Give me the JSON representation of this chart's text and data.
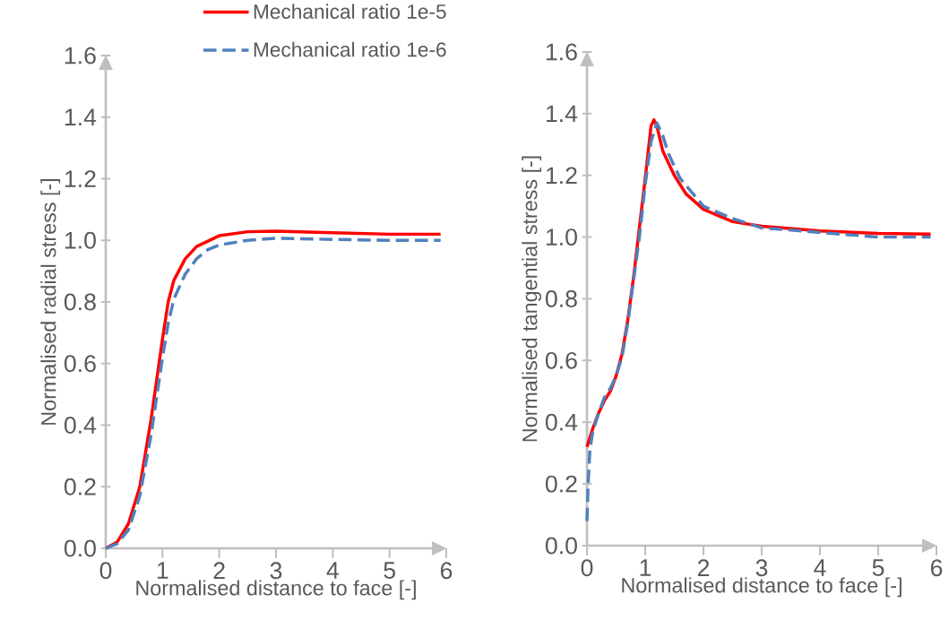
{
  "chart_data": [
    {
      "type": "line",
      "xlabel": "Normalised distance to face [-]",
      "ylabel": "Normalised radial stress [-]",
      "xlim": [
        0,
        6
      ],
      "ylim": [
        0,
        1.6
      ],
      "xticks": [
        0,
        1,
        2,
        3,
        4,
        5,
        6
      ],
      "yticks": [
        {
          "value": 0,
          "label": "0.0"
        },
        {
          "value": 0.2,
          "label": "0.2"
        },
        {
          "value": 0.4,
          "label": "0.4"
        },
        {
          "value": 0.6,
          "label": "0.6"
        },
        {
          "value": 0.8,
          "label": "0.8"
        },
        {
          "value": 1.0,
          "label": "1.0"
        },
        {
          "value": 1.2,
          "label": "1.2"
        },
        {
          "value": 1.4,
          "label": "1.4"
        },
        {
          "value": 1.6,
          "label": "1.6"
        }
      ],
      "grid": false,
      "legend": "top right",
      "marker": "none",
      "series": [
        {
          "name": "Mechanical ratio 1e-5",
          "color": "#ff0000",
          "line_style": "solid",
          "x": [
            0,
            0.2,
            0.4,
            0.6,
            0.8,
            1.0,
            1.1,
            1.2,
            1.4,
            1.6,
            2.0,
            2.5,
            3,
            4,
            5,
            5.9
          ],
          "values": [
            0,
            0.02,
            0.08,
            0.2,
            0.42,
            0.68,
            0.8,
            0.87,
            0.94,
            0.98,
            1.015,
            1.028,
            1.03,
            1.025,
            1.02,
            1.02
          ]
        },
        {
          "name": "Mechanical ratio 1e-6",
          "color": "#4f81bd",
          "line_style": "dashed",
          "x": [
            0,
            0.2,
            0.4,
            0.6,
            0.8,
            1.0,
            1.1,
            1.2,
            1.4,
            1.6,
            1.8,
            2.0,
            2.5,
            3,
            4,
            5,
            5.9
          ],
          "values": [
            0,
            0.015,
            0.06,
            0.17,
            0.37,
            0.62,
            0.73,
            0.81,
            0.89,
            0.94,
            0.97,
            0.985,
            1.0,
            1.007,
            1.003,
            1.0,
            1.0
          ]
        }
      ]
    },
    {
      "type": "line",
      "xlabel": "Normalised distance to face [-]",
      "ylabel": "Normalised tangential stress [-]",
      "xlim": [
        0,
        6
      ],
      "ylim": [
        0,
        1.6
      ],
      "xticks": [
        0,
        1,
        2,
        3,
        4,
        5,
        6
      ],
      "yticks": [
        {
          "value": 0,
          "label": "0.0"
        },
        {
          "value": 0.2,
          "label": "0.2"
        },
        {
          "value": 0.4,
          "label": "0.4"
        },
        {
          "value": 0.6,
          "label": "0.6"
        },
        {
          "value": 0.8,
          "label": "0.8"
        },
        {
          "value": 1.0,
          "label": "1.0"
        },
        {
          "value": 1.2,
          "label": "1.2"
        },
        {
          "value": 1.4,
          "label": "1.4"
        },
        {
          "value": 1.6,
          "label": "1.6"
        }
      ],
      "grid": false,
      "legend": false,
      "marker": "none",
      "series": [
        {
          "color": "#ff0000",
          "line_style": "solid",
          "x": [
            0,
            0.1,
            0.2,
            0.3,
            0.4,
            0.5,
            0.6,
            0.7,
            0.8,
            0.9,
            1.0,
            1.1,
            1.15,
            1.2,
            1.3,
            1.5,
            1.7,
            2,
            2.5,
            3,
            4,
            5,
            5.9
          ],
          "values": [
            0.32,
            0.38,
            0.43,
            0.47,
            0.5,
            0.55,
            0.62,
            0.73,
            0.87,
            1.03,
            1.19,
            1.36,
            1.38,
            1.36,
            1.28,
            1.2,
            1.14,
            1.09,
            1.05,
            1.035,
            1.02,
            1.012,
            1.01
          ]
        },
        {
          "color": "#4f81bd",
          "line_style": "dashed",
          "x": [
            0,
            0.02,
            0.05,
            0.1,
            0.2,
            0.3,
            0.4,
            0.5,
            0.6,
            0.7,
            0.8,
            0.9,
            1.0,
            1.1,
            1.2,
            1.3,
            1.4,
            1.6,
            2,
            2.5,
            3,
            4,
            5,
            5.9
          ],
          "values": [
            0.08,
            0.2,
            0.31,
            0.37,
            0.43,
            0.48,
            0.51,
            0.55,
            0.61,
            0.72,
            0.86,
            1.0,
            1.17,
            1.31,
            1.37,
            1.33,
            1.27,
            1.19,
            1.1,
            1.06,
            1.03,
            1.015,
            1.0,
            1.0
          ]
        }
      ]
    }
  ]
}
